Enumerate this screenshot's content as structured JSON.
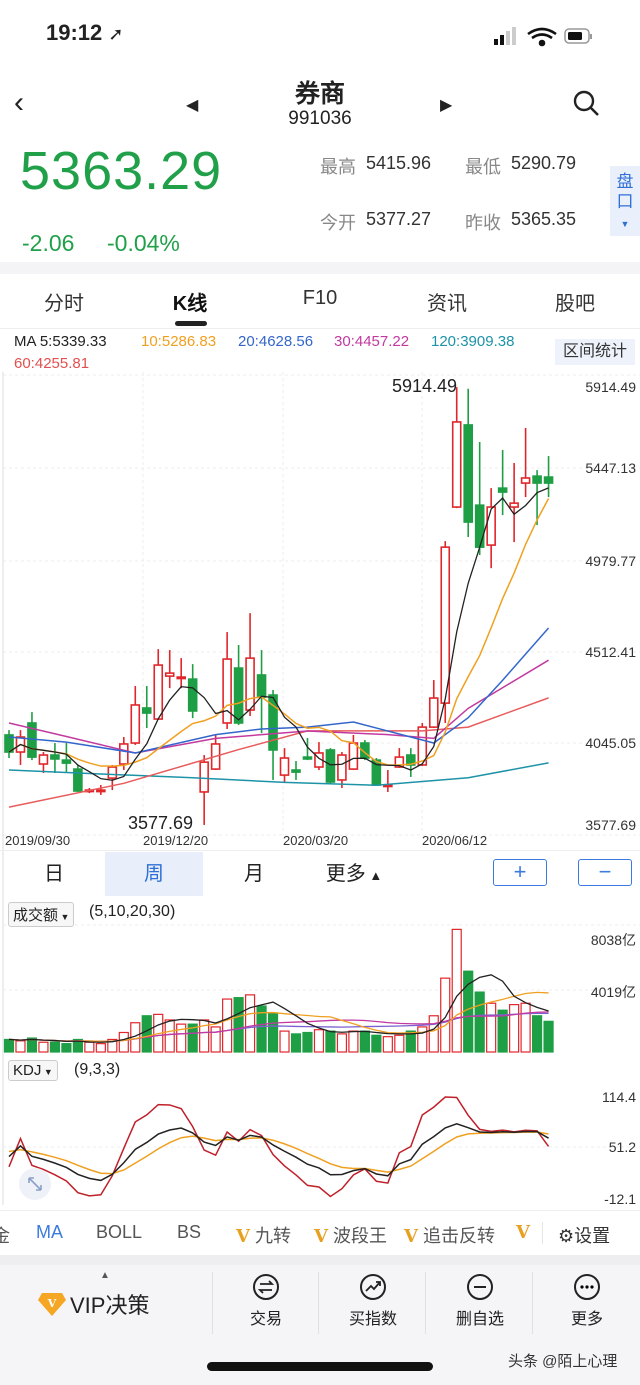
{
  "status": {
    "time": "19:12"
  },
  "header": {
    "title": "券商",
    "code": "991036"
  },
  "quote": {
    "price": "5363.29",
    "change": "-2.06",
    "change_pct": "-0.04%",
    "high_label": "最高",
    "high": "5415.96",
    "low_label": "最低",
    "low": "5290.79",
    "open_label": "今开",
    "open": "5377.27",
    "prev_close_label": "昨收",
    "prev_close": "5365.35",
    "pankou": "盘口"
  },
  "tabs": [
    "分时",
    "K线",
    "F10",
    "资讯",
    "股吧"
  ],
  "ma_legend": {
    "ma5": "MA 5:5339.33",
    "ma10": "10:5286.83",
    "ma20": "20:4628.56",
    "ma30": "30:4457.22",
    "ma120": "120:3909.38",
    "ma60": "60:4255.81",
    "range_stats": "区间统计"
  },
  "periods": [
    "日",
    "周",
    "月",
    "更多"
  ],
  "zoom_in": "+",
  "zoom_out": "−",
  "volume": {
    "selector": "成交额",
    "params": "(5,10,20,30)",
    "ticks": [
      "8038亿",
      "4019亿"
    ]
  },
  "kdj": {
    "selector": "KDJ",
    "params": "(9,3,3)",
    "ticks": [
      "114.4",
      "51.2",
      "-12.1"
    ]
  },
  "indicators": {
    "cut": "金",
    "ma": "MA",
    "boll": "BOLL",
    "bs": "BS",
    "v1": "九转",
    "v2": "波段王",
    "v3": "追击反转",
    "v_mark": "V",
    "settings": "设置"
  },
  "bottom": {
    "vip": "VIP决策",
    "trade": "交易",
    "buy_index": "买指数",
    "remove": "删自选",
    "more": "更多"
  },
  "watermark": "头条 @陌上心理",
  "colors": {
    "up": "#e0262b",
    "down": "#1e9e45",
    "ma5": "#222222",
    "ma10": "#f0a020",
    "ma20": "#3366cc",
    "ma30": "#c23aa0",
    "ma60": "#e85b5b",
    "ma120": "#1d93a8"
  },
  "chart_data": {
    "type": "candlestick",
    "period": "weekly",
    "x_tick_labels": [
      "2019/09/30",
      "2019/12/20",
      "2020/03/20",
      "2020/06/12"
    ],
    "y_tick_labels": [
      "5914.49",
      "5447.13",
      "4979.77",
      "4512.41",
      "4045.05",
      "3577.69"
    ],
    "ylim": [
      3577.69,
      5914.49
    ],
    "annotations": {
      "max": "5914.49",
      "min": "3577.69"
    },
    "ohlc": [
      [
        4058,
        4084,
        3935,
        3967
      ],
      [
        3967,
        4084,
        3898,
        4047
      ],
      [
        4122,
        4180,
        3924,
        3940
      ],
      [
        3903,
        3967,
        3855,
        3951
      ],
      [
        3951,
        4015,
        3855,
        3930
      ],
      [
        3924,
        4015,
        3855,
        3908
      ],
      [
        3876,
        3898,
        3754,
        3759
      ],
      [
        3759,
        3775,
        3748,
        3764
      ],
      [
        3759,
        3791,
        3738,
        3764
      ],
      [
        3828,
        3898,
        3764,
        3887
      ],
      [
        3903,
        4047,
        3871,
        4010
      ],
      [
        4015,
        4319,
        4005,
        4218
      ],
      [
        4202,
        4319,
        4095,
        4175
      ],
      [
        4143,
        4516,
        4138,
        4431
      ],
      [
        4372,
        4511,
        4308,
        4388
      ],
      [
        4362,
        4468,
        4308,
        4367
      ],
      [
        4356,
        4436,
        4148,
        4186
      ],
      [
        3754,
        3951,
        3578,
        3913
      ],
      [
        3876,
        4058,
        3871,
        4010
      ],
      [
        4122,
        4607,
        4090,
        4463
      ],
      [
        4415,
        4538,
        4111,
        4122
      ],
      [
        4191,
        4708,
        4159,
        4468
      ],
      [
        4378,
        4511,
        4068,
        4260
      ],
      [
        4271,
        4298,
        3818,
        3978
      ],
      [
        3844,
        3988,
        3807,
        3935
      ],
      [
        3871,
        3919,
        3818,
        3860
      ],
      [
        3940,
        4042,
        3924,
        3930
      ],
      [
        3887,
        4020,
        3871,
        3962
      ],
      [
        3978,
        3988,
        3796,
        3807
      ],
      [
        3818,
        3967,
        3775,
        3951
      ],
      [
        3876,
        4058,
        3871,
        4015
      ],
      [
        4015,
        4031,
        3924,
        3935
      ],
      [
        3924,
        3935,
        3786,
        3791
      ],
      [
        3786,
        3871,
        3754,
        3791
      ],
      [
        3887,
        3988,
        3882,
        3940
      ],
      [
        3951,
        3988,
        3834,
        3898
      ],
      [
        3898,
        4122,
        3892,
        4100
      ],
      [
        4100,
        4351,
        4095,
        4255
      ],
      [
        4228,
        5092,
        4122,
        5060
      ],
      [
        5274,
        5914,
        5268,
        5728
      ],
      [
        5712,
        5905,
        5114,
        5194
      ],
      [
        5284,
        5621,
        5018,
        5060
      ],
      [
        5071,
        5375,
        4948,
        5274
      ],
      [
        5375,
        5578,
        5231,
        5354
      ],
      [
        5274,
        5509,
        5087,
        5295
      ],
      [
        5402,
        5696,
        5327,
        5429
      ],
      [
        5439,
        5471,
        5178,
        5402
      ],
      [
        5434,
        5546,
        5327,
        5402
      ]
    ],
    "ma_long": {
      "ma20": [
        [
          0,
          4047
        ],
        [
          5,
          4020
        ],
        [
          11,
          3962
        ],
        [
          18,
          4060
        ],
        [
          22,
          4090
        ],
        [
          26,
          4100
        ],
        [
          30,
          4127
        ],
        [
          37,
          4015
        ],
        [
          40,
          4150
        ],
        [
          43,
          4350
        ],
        [
          47,
          4629
        ]
      ],
      "ma30": [
        [
          0,
          4122
        ],
        [
          5,
          4050
        ],
        [
          11,
          3962
        ],
        [
          18,
          4040
        ],
        [
          26,
          4079
        ],
        [
          33,
          4060
        ],
        [
          37,
          4040
        ],
        [
          40,
          4200
        ],
        [
          47,
          4457
        ]
      ],
      "ma60": [
        [
          0,
          3673
        ],
        [
          10,
          3800
        ],
        [
          20,
          3980
        ],
        [
          26,
          4080
        ],
        [
          36,
          4080
        ],
        [
          40,
          4100
        ],
        [
          47,
          4256
        ]
      ],
      "ma120": [
        [
          0,
          3871
        ],
        [
          8,
          3850
        ],
        [
          16,
          3830
        ],
        [
          24,
          3805
        ],
        [
          32,
          3790
        ],
        [
          40,
          3830
        ],
        [
          47,
          3909
        ]
      ]
    },
    "volume_yi": [
      900,
      800,
      1000,
      700,
      700,
      600,
      900,
      700,
      600,
      900,
      1400,
      2100,
      2600,
      2700,
      2300,
      2000,
      2000,
      2300,
      1800,
      3800,
      3900,
      4100,
      3300,
      2800,
      1500,
      1300,
      1400,
      1600,
      1500,
      1300,
      1500,
      1500,
      1200,
      1100,
      1200,
      1500,
      1800,
      2600,
      5300,
      8800,
      5800,
      4300,
      3500,
      3000,
      3400,
      3500,
      2600,
      2200
    ],
    "volume_ylim": [
      0,
      8038
    ],
    "kdj_ylim": [
      -12.1,
      114.4
    ]
  }
}
